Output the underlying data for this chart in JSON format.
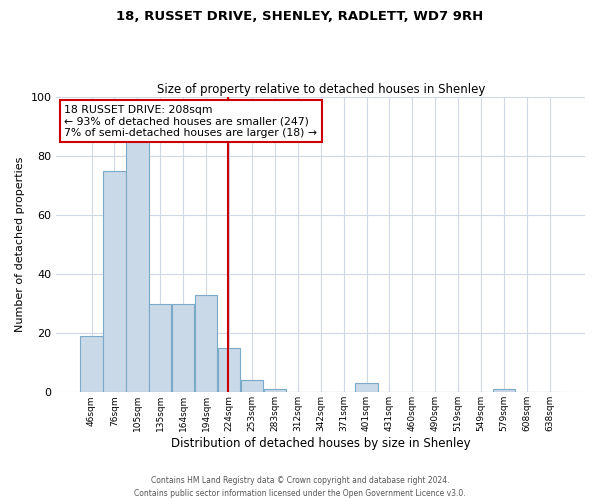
{
  "title1": "18, RUSSET DRIVE, SHENLEY, RADLETT, WD7 9RH",
  "title2": "Size of property relative to detached houses in Shenley",
  "xlabel": "Distribution of detached houses by size in Shenley",
  "ylabel": "Number of detached properties",
  "bin_labels": [
    "46sqm",
    "76sqm",
    "105sqm",
    "135sqm",
    "164sqm",
    "194sqm",
    "224sqm",
    "253sqm",
    "283sqm",
    "312sqm",
    "342sqm",
    "371sqm",
    "401sqm",
    "431sqm",
    "460sqm",
    "490sqm",
    "519sqm",
    "549sqm",
    "579sqm",
    "608sqm",
    "638sqm"
  ],
  "bar_heights": [
    19,
    75,
    85,
    30,
    30,
    33,
    15,
    4,
    1,
    0,
    0,
    0,
    3,
    0,
    0,
    0,
    0,
    0,
    1,
    0,
    0
  ],
  "bar_color": "#c9d9e8",
  "bar_edgecolor": "#7aaac8",
  "ylim": [
    0,
    100
  ],
  "yticks": [
    0,
    20,
    40,
    60,
    80,
    100
  ],
  "vline_color": "#cc0000",
  "annotation_title": "18 RUSSET DRIVE: 208sqm",
  "annotation_line1": "← 93% of detached houses are smaller (247)",
  "annotation_line2": "7% of semi-detached houses are larger (18) →",
  "annotation_box_color": "#cc0000",
  "footer1": "Contains HM Land Registry data © Crown copyright and database right 2024.",
  "footer2": "Contains public sector information licensed under the Open Government Licence v3.0.",
  "background_color": "#ffffff",
  "grid_color": "#d0d8e8"
}
